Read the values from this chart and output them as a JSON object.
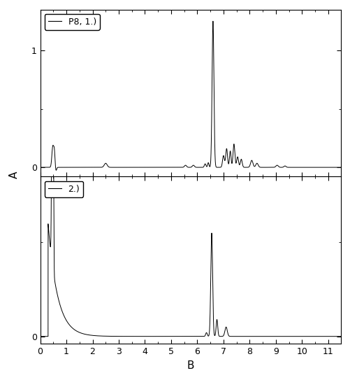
{
  "title": "",
  "xlabel": "B",
  "ylabel": "A",
  "xlim": [
    0,
    11.5
  ],
  "panel1_label": "P8, 1.)",
  "panel2_label": "2.)",
  "panel1_yticks": [
    0,
    1
  ],
  "panel1_ylim": [
    -0.08,
    1.35
  ],
  "panel2_yticks": [
    0
  ],
  "panel2_ylim": [
    -0.04,
    0.85
  ],
  "xticks": [
    0,
    1,
    2,
    3,
    4,
    5,
    6,
    7,
    8,
    9,
    10,
    11
  ],
  "background_color": "#ffffff",
  "line_color": "#000000",
  "line_width": 0.7
}
